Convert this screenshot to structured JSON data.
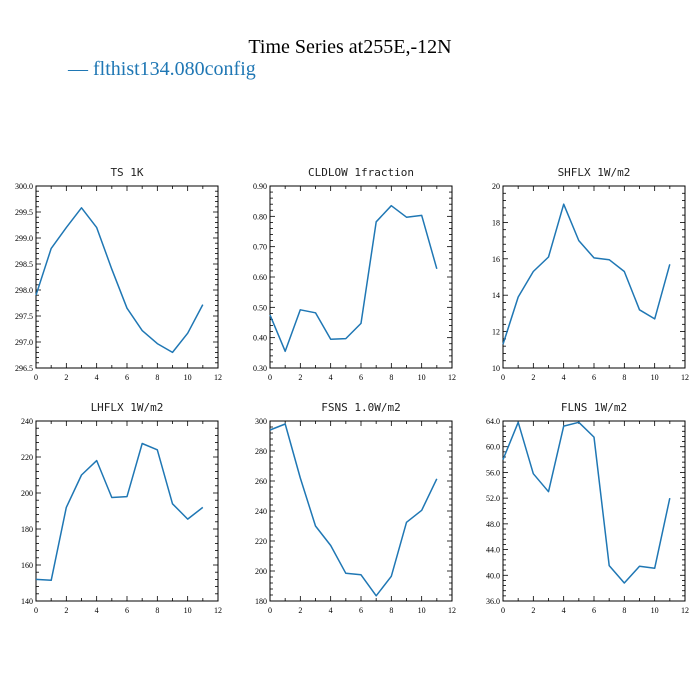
{
  "title": "Time Series at255E,-12N",
  "legend": {
    "label": "— flthist134.080config",
    "color": "#1f77b4"
  },
  "chart_data": [
    {
      "type": "line",
      "title": "TS   1K",
      "x": [
        0,
        1,
        2,
        3,
        4,
        5,
        6,
        7,
        8,
        9,
        10,
        11
      ],
      "xlim": [
        0,
        12
      ],
      "xticks": [
        0,
        2,
        4,
        6,
        8,
        10,
        12
      ],
      "ylim": [
        296.5,
        300.0
      ],
      "yticks": [
        296.5,
        297.0,
        297.5,
        298.0,
        298.5,
        299.0,
        299.5,
        300.0
      ],
      "ytick_labels": [
        "296.5",
        "297.0",
        "297.5",
        "298.0",
        "298.5",
        "299.0",
        "299.5",
        "300.0"
      ],
      "series": [
        {
          "values": [
            297.9,
            298.8,
            299.2,
            299.58,
            299.2,
            298.4,
            297.65,
            297.22,
            296.97,
            296.8,
            297.17,
            297.72
          ],
          "color": "#1f77b4"
        }
      ]
    },
    {
      "type": "line",
      "title": "CLDLOW   1fraction",
      "x": [
        0,
        1,
        2,
        3,
        4,
        5,
        6,
        7,
        8,
        9,
        10,
        11
      ],
      "xlim": [
        0,
        12
      ],
      "xticks": [
        0,
        2,
        4,
        6,
        8,
        10,
        12
      ],
      "ylim": [
        0.3,
        0.9
      ],
      "yticks": [
        0.3,
        0.4,
        0.5,
        0.6,
        0.7,
        0.8,
        0.9
      ],
      "ytick_labels": [
        "0.30",
        "0.40",
        "0.50",
        "0.60",
        "0.70",
        "0.80",
        "0.90"
      ],
      "series": [
        {
          "values": [
            0.475,
            0.355,
            0.492,
            0.482,
            0.395,
            0.397,
            0.447,
            0.782,
            0.835,
            0.797,
            0.803,
            0.627
          ],
          "color": "#1f77b4"
        }
      ]
    },
    {
      "type": "line",
      "title": "SHFLX   1W/m2",
      "x": [
        0,
        1,
        2,
        3,
        4,
        5,
        6,
        7,
        8,
        9,
        10,
        11
      ],
      "xlim": [
        0,
        12
      ],
      "xticks": [
        0,
        2,
        4,
        6,
        8,
        10,
        12
      ],
      "ylim": [
        10,
        20
      ],
      "yticks": [
        10,
        12,
        14,
        16,
        18,
        20
      ],
      "ytick_labels": [
        "10",
        "12",
        "14",
        "16",
        "18",
        "20"
      ],
      "series": [
        {
          "values": [
            11.3,
            13.9,
            15.3,
            16.1,
            19.0,
            17.0,
            16.05,
            15.95,
            15.3,
            13.2,
            12.7,
            15.7
          ],
          "color": "#1f77b4"
        }
      ]
    },
    {
      "type": "line",
      "title": "LHFLX   1W/m2",
      "x": [
        0,
        1,
        2,
        3,
        4,
        5,
        6,
        7,
        8,
        9,
        10,
        11
      ],
      "xlim": [
        0,
        12
      ],
      "xticks": [
        0,
        2,
        4,
        6,
        8,
        10,
        12
      ],
      "ylim": [
        140,
        240
      ],
      "yticks": [
        140,
        160,
        180,
        200,
        220,
        240
      ],
      "ytick_labels": [
        "140",
        "160",
        "180",
        "200",
        "220",
        "240"
      ],
      "series": [
        {
          "values": [
            152,
            151.5,
            192,
            210,
            218,
            197.5,
            198,
            227.5,
            224,
            194,
            185.5,
            192
          ],
          "color": "#1f77b4"
        }
      ]
    },
    {
      "type": "line",
      "title": "FSNS   1.0W/m2",
      "x": [
        0,
        1,
        2,
        3,
        4,
        5,
        6,
        7,
        8,
        9,
        10,
        11
      ],
      "xlim": [
        0,
        12
      ],
      "xticks": [
        0,
        2,
        4,
        6,
        8,
        10,
        12
      ],
      "ylim": [
        180,
        300
      ],
      "yticks": [
        180,
        200,
        220,
        240,
        260,
        280,
        300
      ],
      "ytick_labels": [
        "180",
        "200",
        "220",
        "240",
        "260",
        "280",
        "300"
      ],
      "series": [
        {
          "values": [
            294,
            298,
            262,
            230,
            217,
            198.5,
            197.5,
            183.5,
            196.5,
            232.5,
            240.5,
            261.5
          ],
          "color": "#1f77b4"
        }
      ]
    },
    {
      "type": "line",
      "title": "FLNS   1W/m2",
      "x": [
        0,
        1,
        2,
        3,
        4,
        5,
        6,
        7,
        8,
        9,
        10,
        11
      ],
      "xlim": [
        0,
        12
      ],
      "xticks": [
        0,
        2,
        4,
        6,
        8,
        10,
        12
      ],
      "ylim": [
        36.0,
        64.0
      ],
      "yticks": [
        36,
        40,
        44,
        48,
        52,
        56,
        60,
        64
      ],
      "ytick_labels": [
        "36.0",
        "40.0",
        "44.0",
        "48.0",
        "52.0",
        "56.0",
        "60.0",
        "64.0"
      ],
      "series": [
        {
          "values": [
            58,
            63.8,
            55.8,
            53,
            63.2,
            63.8,
            61.5,
            41.5,
            38.8,
            41.4,
            41.1,
            52
          ],
          "color": "#1f77b4"
        }
      ]
    }
  ]
}
